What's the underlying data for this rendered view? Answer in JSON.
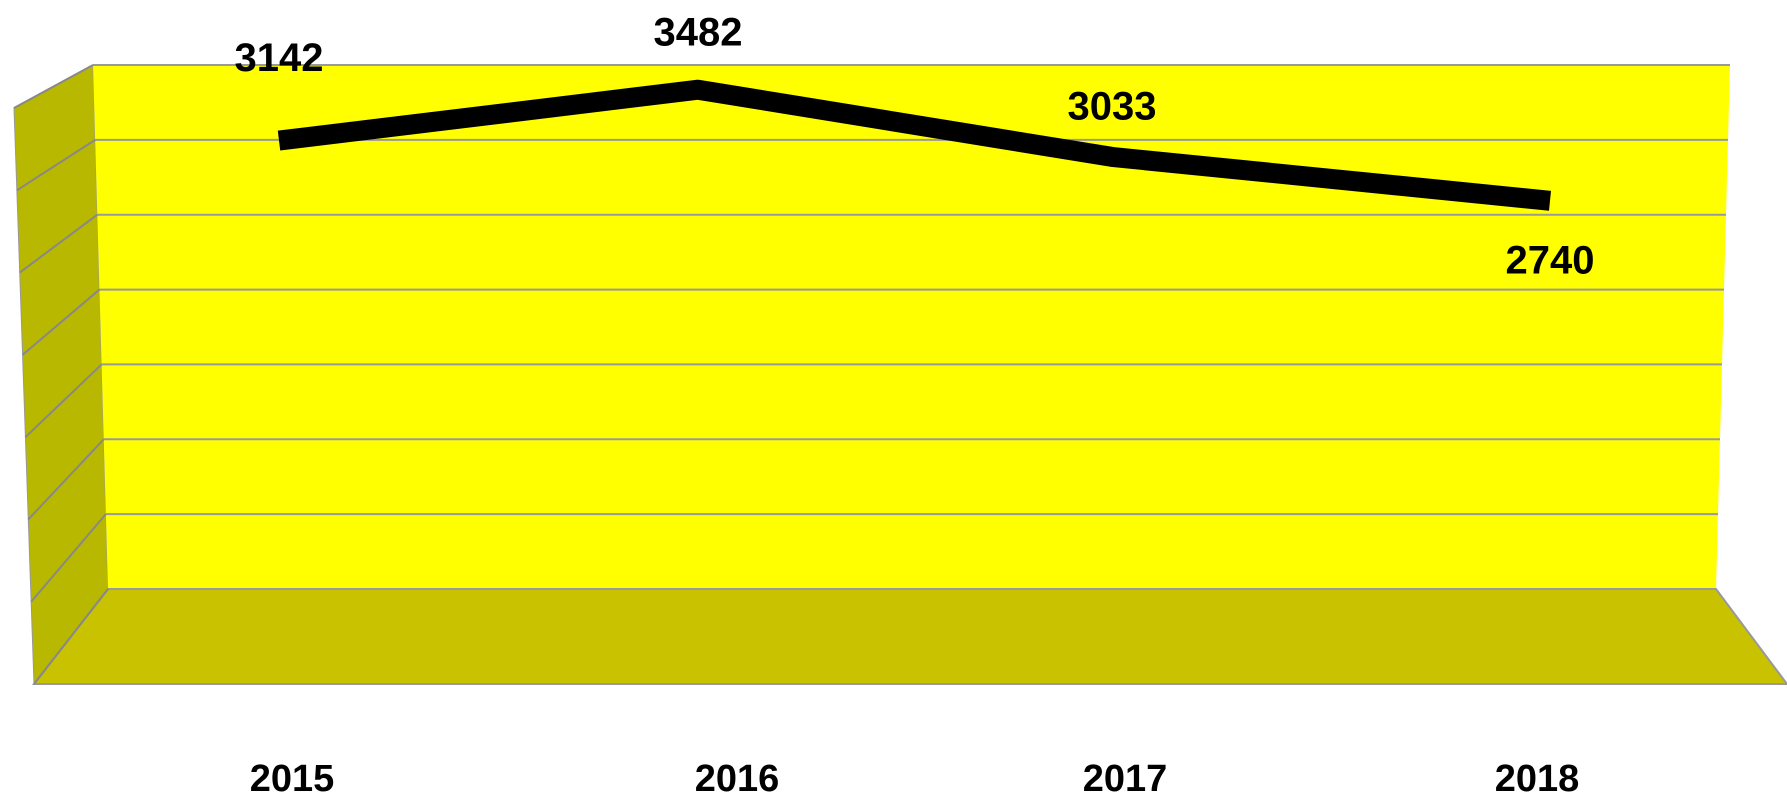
{
  "chart_data": {
    "type": "line",
    "categories": [
      "2015",
      "2016",
      "2017",
      "2018"
    ],
    "values": [
      3142,
      3482,
      3033,
      2740
    ],
    "color": "#000000",
    "ylim": [
      0,
      3500
    ],
    "yticks": [
      0,
      500,
      1000,
      1500,
      2000,
      2500,
      3000,
      3500
    ],
    "grid": true
  }
}
